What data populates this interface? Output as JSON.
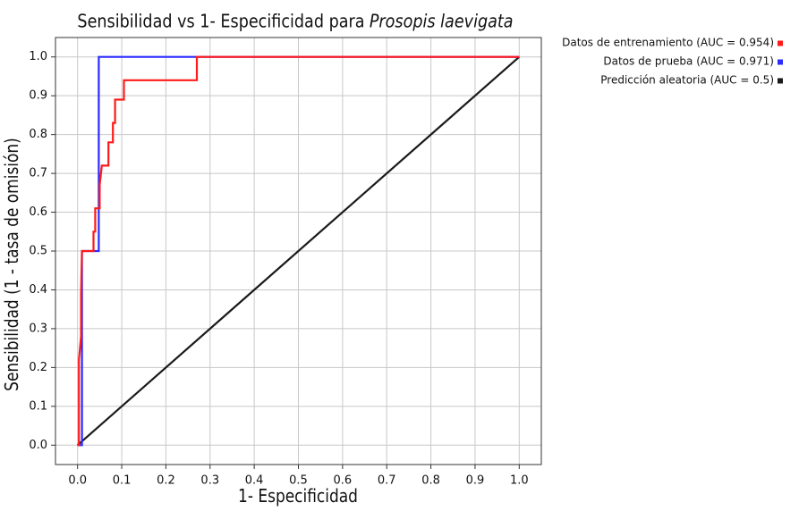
{
  "chart_data": {
    "type": "line",
    "title": "Sensibilidad vs 1- Especificidad para",
    "title_species": "Prosopis laevigata",
    "x_label": "1- Especificidad",
    "y_label": "Sensibilidad (1 - tasa de omisión)",
    "xlim": [
      -0.05,
      1.05
    ],
    "ylim": [
      -0.05,
      1.05
    ],
    "xticks": [
      {
        "value": 0,
        "label": "0.0"
      },
      0.1,
      0.2,
      0.3,
      0.4,
      0.5,
      0.6,
      0.7,
      0.8,
      0.9,
      {
        "value": 1,
        "label": "1.0"
      }
    ],
    "yticks": [
      {
        "value": 0,
        "label": "0.0"
      },
      0.1,
      0.2,
      0.3,
      0.4,
      0.5,
      0.6,
      0.7,
      0.8,
      0.9,
      {
        "value": 1,
        "label": "1.0"
      }
    ],
    "grid": true,
    "legend": "outside-top-right",
    "series": [
      {
        "name": "Datos de entrenamiento (AUC = 0.954)",
        "color": "#ff1a1a",
        "x": [
          0,
          0.003,
          0.003,
          0.008,
          0.008,
          0.01,
          0.012,
          0.036,
          0.036,
          0.04,
          0.04,
          0.05,
          0.05,
          0.055,
          0.07,
          0.07,
          0.08,
          0.08,
          0.085,
          0.085,
          0.105,
          0.105,
          0.27,
          0.27,
          1.0
        ],
        "values": [
          0,
          0,
          0.22,
          0.28,
          0.39,
          0.5,
          0.5,
          0.5,
          0.55,
          0.55,
          0.61,
          0.61,
          0.67,
          0.72,
          0.72,
          0.78,
          0.78,
          0.83,
          0.83,
          0.89,
          0.89,
          0.94,
          0.94,
          1.0,
          1.0
        ]
      },
      {
        "name": "Datos de prueba (AUC = 0.971)",
        "color": "#2b2bff",
        "x": [
          0,
          0.01,
          0.01,
          0.048,
          0.048,
          1.0
        ],
        "values": [
          0,
          0,
          0.5,
          0.5,
          1.0,
          1.0
        ]
      },
      {
        "name": "Predicción aleatoria (AUC = 0.5)",
        "color": "#1a1a1a",
        "x": [
          0,
          1.0
        ],
        "values": [
          0,
          1.0
        ]
      }
    ]
  }
}
